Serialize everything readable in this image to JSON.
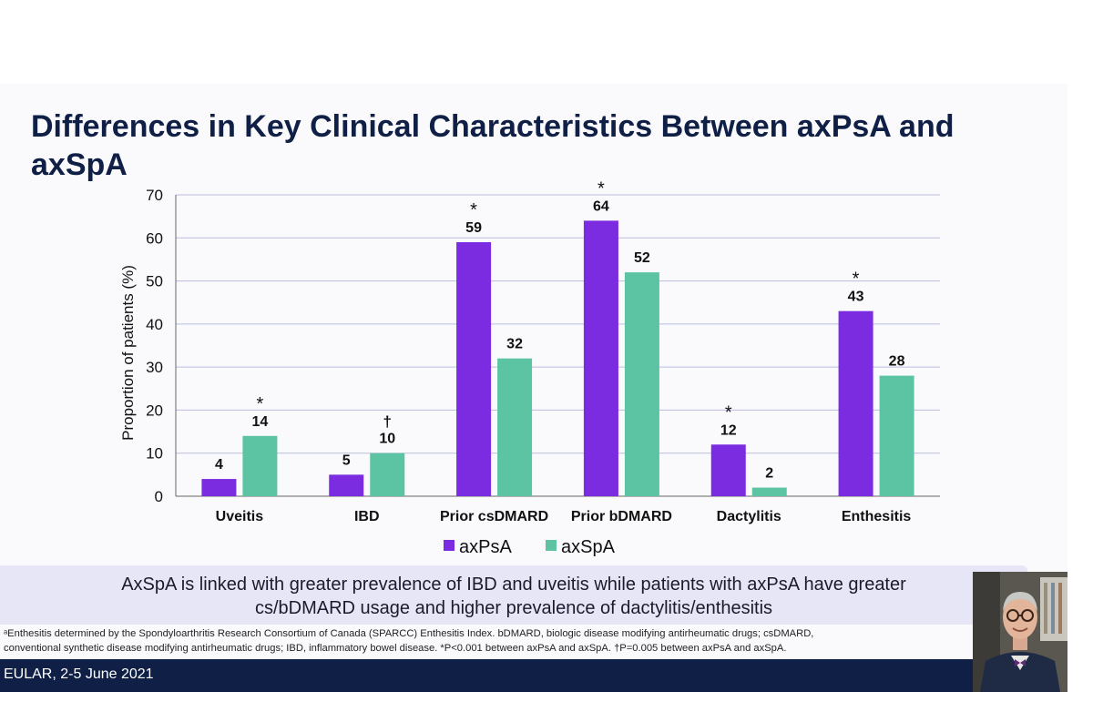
{
  "slide": {
    "title": "Differences in Key Clinical Characteristics Between axPsA and axSpA",
    "takeaway_line1": "AxSpA is linked with greater prevalence of IBD and uveitis while patients with axPsA have greater",
    "takeaway_line2": "cs/bDMARD usage and higher prevalence of dactylitis/enthesitis",
    "footnote_line1": "ᵃEnthesitis determined by the Spondyloarthritis Research Consortium of Canada (SPARCC) Enthesitis Index. bDMARD, biologic disease modifying antirheumatic drugs; csDMARD,",
    "footnote_line2": "conventional synthetic disease modifying antirheumatic drugs; IBD, inflammatory bowel disease. *P<0.001 between axPsA and axSpA. †P=0.005 between axPsA and axSpA.",
    "footer": "EULAR, 2-5 June 2021"
  },
  "chart_data": {
    "type": "bar",
    "title": "",
    "xlabel": "",
    "ylabel": "Proportion of patients (%)",
    "ylim": [
      0,
      70
    ],
    "yticks": [
      0,
      10,
      20,
      30,
      40,
      50,
      60,
      70
    ],
    "grid": true,
    "legend_position": "bottom-center",
    "categories": [
      "Uveitis",
      "IBD",
      "Prior csDMARD",
      "Prior bDMARD",
      "Dactylitis",
      "Enthesitis"
    ],
    "series": [
      {
        "name": "axPsA",
        "color": "#7b2be0",
        "values": [
          4,
          5,
          59,
          64,
          12,
          43
        ],
        "markers": [
          "",
          "",
          "*",
          "*",
          "*",
          "*"
        ]
      },
      {
        "name": "axSpA",
        "color": "#5cc4a2",
        "values": [
          14,
          10,
          32,
          52,
          2,
          28
        ],
        "markers": [
          "*",
          "†",
          "",
          "",
          "",
          ""
        ]
      }
    ]
  },
  "colors": {
    "title": "#0f1f45",
    "footer_bar": "#0f1f45",
    "takeaway_bg": "#e6e6f6"
  },
  "presenter_icon": "presenter-video-thumbnail"
}
